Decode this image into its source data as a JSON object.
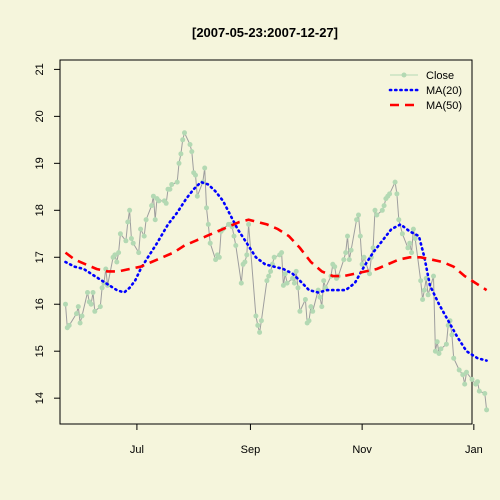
{
  "chart_data": {
    "type": "line",
    "title": "[2007-05-23:2007-12-27]",
    "xlabel": "",
    "ylabel": "",
    "xlim": [
      "2007-05-20",
      "2007-12-31"
    ],
    "ylim": [
      13.45,
      21.2
    ],
    "x_ticks": [
      {
        "date": "2007-07-01",
        "label": "Jul"
      },
      {
        "date": "2007-09-01",
        "label": "Sep"
      },
      {
        "date": "2007-11-01",
        "label": "Nov"
      },
      {
        "date": "2008-01-01",
        "label": "Jan"
      }
    ],
    "y_ticks": [
      14,
      15,
      16,
      17,
      18,
      19,
      20,
      21
    ],
    "grid": false,
    "legend_position": "top-right",
    "series": [
      {
        "name": "Close",
        "color": "#B3D9B3",
        "style": "line-points",
        "points": [
          [
            "2007-05-23",
            16.0
          ],
          [
            "2007-05-24",
            15.5
          ],
          [
            "2007-05-25",
            15.55
          ],
          [
            "2007-05-29",
            15.8
          ],
          [
            "2007-05-30",
            15.95
          ],
          [
            "2007-05-31",
            15.6
          ],
          [
            "2007-06-01",
            15.75
          ],
          [
            "2007-06-04",
            16.25
          ],
          [
            "2007-06-05",
            16.05
          ],
          [
            "2007-06-06",
            16.0
          ],
          [
            "2007-06-07",
            16.25
          ],
          [
            "2007-06-08",
            15.85
          ],
          [
            "2007-06-11",
            15.95
          ],
          [
            "2007-06-12",
            16.35
          ],
          [
            "2007-06-13",
            16.45
          ],
          [
            "2007-06-14",
            16.75
          ],
          [
            "2007-06-15",
            16.4
          ],
          [
            "2007-06-18",
            17.0
          ],
          [
            "2007-06-19",
            17.05
          ],
          [
            "2007-06-20",
            16.9
          ],
          [
            "2007-06-21",
            17.1
          ],
          [
            "2007-06-22",
            17.5
          ],
          [
            "2007-06-25",
            17.35
          ],
          [
            "2007-06-26",
            17.75
          ],
          [
            "2007-06-27",
            18.0
          ],
          [
            "2007-06-28",
            17.4
          ],
          [
            "2007-06-29",
            17.3
          ],
          [
            "2007-07-02",
            17.1
          ],
          [
            "2007-07-03",
            17.6
          ],
          [
            "2007-07-05",
            17.45
          ],
          [
            "2007-07-06",
            17.8
          ],
          [
            "2007-07-09",
            18.1
          ],
          [
            "2007-07-10",
            18.3
          ],
          [
            "2007-07-11",
            17.8
          ],
          [
            "2007-07-12",
            18.25
          ],
          [
            "2007-07-13",
            18.2
          ],
          [
            "2007-07-16",
            18.2
          ],
          [
            "2007-07-17",
            18.15
          ],
          [
            "2007-07-18",
            18.45
          ],
          [
            "2007-07-19",
            18.45
          ],
          [
            "2007-07-20",
            18.55
          ],
          [
            "2007-07-23",
            18.6
          ],
          [
            "2007-07-24",
            19.0
          ],
          [
            "2007-07-25",
            19.2
          ],
          [
            "2007-07-26",
            19.5
          ],
          [
            "2007-07-27",
            19.65
          ],
          [
            "2007-07-30",
            19.4
          ],
          [
            "2007-07-31",
            19.25
          ],
          [
            "2007-08-01",
            18.8
          ],
          [
            "2007-08-02",
            18.75
          ],
          [
            "2007-08-03",
            18.3
          ],
          [
            "2007-08-06",
            18.6
          ],
          [
            "2007-08-07",
            18.9
          ],
          [
            "2007-08-08",
            18.05
          ],
          [
            "2007-08-09",
            17.7
          ],
          [
            "2007-08-10",
            17.3
          ],
          [
            "2007-08-13",
            16.95
          ],
          [
            "2007-08-14",
            17.05
          ],
          [
            "2007-08-15",
            17.0
          ],
          [
            "2007-08-16",
            17.55
          ],
          [
            "2007-08-17",
            17.6
          ],
          [
            "2007-08-20",
            17.7
          ],
          [
            "2007-08-21",
            17.7
          ],
          [
            "2007-08-22",
            17.65
          ],
          [
            "2007-08-23",
            17.45
          ],
          [
            "2007-08-24",
            17.25
          ],
          [
            "2007-08-27",
            16.45
          ],
          [
            "2007-08-28",
            16.85
          ],
          [
            "2007-08-29",
            16.9
          ],
          [
            "2007-08-30",
            17.05
          ],
          [
            "2007-08-31",
            17.7
          ],
          [
            "2007-09-04",
            15.75
          ],
          [
            "2007-09-05",
            15.55
          ],
          [
            "2007-09-06",
            15.4
          ],
          [
            "2007-09-07",
            15.65
          ],
          [
            "2007-09-10",
            16.5
          ],
          [
            "2007-09-11",
            16.6
          ],
          [
            "2007-09-12",
            16.7
          ],
          [
            "2007-09-13",
            16.85
          ],
          [
            "2007-09-14",
            17.0
          ],
          [
            "2007-09-17",
            17.05
          ],
          [
            "2007-09-18",
            17.1
          ],
          [
            "2007-09-19",
            16.4
          ],
          [
            "2007-09-20",
            16.65
          ],
          [
            "2007-09-21",
            16.45
          ],
          [
            "2007-09-24",
            16.55
          ],
          [
            "2007-09-25",
            16.45
          ],
          [
            "2007-09-26",
            16.7
          ],
          [
            "2007-09-27",
            16.35
          ],
          [
            "2007-09-28",
            15.85
          ],
          [
            "2007-10-01",
            16.1
          ],
          [
            "2007-10-02",
            15.6
          ],
          [
            "2007-10-03",
            15.65
          ],
          [
            "2007-10-04",
            15.95
          ],
          [
            "2007-10-05",
            15.85
          ],
          [
            "2007-10-08",
            16.3
          ],
          [
            "2007-10-09",
            16.15
          ],
          [
            "2007-10-10",
            15.95
          ],
          [
            "2007-10-11",
            16.5
          ],
          [
            "2007-10-12",
            16.35
          ],
          [
            "2007-10-15",
            16.6
          ],
          [
            "2007-10-16",
            16.85
          ],
          [
            "2007-10-17",
            16.8
          ],
          [
            "2007-10-18",
            16.55
          ],
          [
            "2007-10-19",
            16.6
          ],
          [
            "2007-10-22",
            16.95
          ],
          [
            "2007-10-23",
            17.1
          ],
          [
            "2007-10-24",
            17.45
          ],
          [
            "2007-10-25",
            16.95
          ],
          [
            "2007-10-26",
            17.15
          ],
          [
            "2007-10-29",
            17.8
          ],
          [
            "2007-10-30",
            17.9
          ],
          [
            "2007-10-31",
            17.45
          ],
          [
            "2007-11-01",
            16.85
          ],
          [
            "2007-11-02",
            17.0
          ],
          [
            "2007-11-05",
            16.65
          ],
          [
            "2007-11-06",
            17.0
          ],
          [
            "2007-11-07",
            17.2
          ],
          [
            "2007-11-08",
            18.0
          ],
          [
            "2007-11-09",
            17.9
          ],
          [
            "2007-11-12",
            18.0
          ],
          [
            "2007-11-13",
            18.1
          ],
          [
            "2007-11-14",
            18.25
          ],
          [
            "2007-11-15",
            18.3
          ],
          [
            "2007-11-16",
            18.35
          ],
          [
            "2007-11-19",
            18.6
          ],
          [
            "2007-11-20",
            18.35
          ],
          [
            "2007-11-21",
            17.8
          ],
          [
            "2007-11-23",
            17.5
          ],
          [
            "2007-11-26",
            17.2
          ],
          [
            "2007-11-27",
            17.3
          ],
          [
            "2007-11-28",
            17.1
          ],
          [
            "2007-11-29",
            17.6
          ],
          [
            "2007-11-30",
            17.4
          ],
          [
            "2007-12-03",
            16.5
          ],
          [
            "2007-12-04",
            16.1
          ],
          [
            "2007-12-05",
            16.3
          ],
          [
            "2007-12-06",
            16.55
          ],
          [
            "2007-12-07",
            16.2
          ],
          [
            "2007-12-10",
            16.6
          ],
          [
            "2007-12-11",
            15.0
          ],
          [
            "2007-12-12",
            15.2
          ],
          [
            "2007-12-13",
            14.95
          ],
          [
            "2007-12-14",
            15.05
          ],
          [
            "2007-12-17",
            15.15
          ],
          [
            "2007-12-18",
            15.55
          ],
          [
            "2007-12-19",
            15.65
          ],
          [
            "2007-12-20",
            15.35
          ],
          [
            "2007-12-21",
            14.85
          ],
          [
            "2007-12-24",
            14.6
          ],
          [
            "2007-12-26",
            14.5
          ],
          [
            "2007-12-27",
            14.3
          ],
          [
            "2007-12-28",
            14.55
          ],
          [
            "2007-12-31",
            14.4
          ],
          [
            "2008-01-02",
            14.3
          ],
          [
            "2008-01-03",
            14.35
          ],
          [
            "2008-01-04",
            14.15
          ],
          [
            "2008-01-07",
            14.1
          ],
          [
            "2008-01-08",
            13.75
          ]
        ]
      },
      {
        "name": "MA(20)",
        "color": "#0000FF",
        "style": "dotted",
        "points": [
          [
            "2007-05-23",
            16.9
          ],
          [
            "2007-05-28",
            16.8
          ],
          [
            "2007-06-02",
            16.75
          ],
          [
            "2007-06-08",
            16.6
          ],
          [
            "2007-06-14",
            16.45
          ],
          [
            "2007-06-20",
            16.3
          ],
          [
            "2007-06-24",
            16.25
          ],
          [
            "2007-06-27",
            16.35
          ],
          [
            "2007-06-30",
            16.5
          ],
          [
            "2007-07-03",
            16.75
          ],
          [
            "2007-07-07",
            17.0
          ],
          [
            "2007-07-12",
            17.3
          ],
          [
            "2007-07-18",
            17.7
          ],
          [
            "2007-07-23",
            17.95
          ],
          [
            "2007-07-28",
            18.25
          ],
          [
            "2007-08-01",
            18.45
          ],
          [
            "2007-08-05",
            18.6
          ],
          [
            "2007-08-09",
            18.55
          ],
          [
            "2007-08-13",
            18.4
          ],
          [
            "2007-08-17",
            18.2
          ],
          [
            "2007-08-21",
            17.9
          ],
          [
            "2007-08-25",
            17.6
          ],
          [
            "2007-08-30",
            17.3
          ],
          [
            "2007-09-04",
            17.0
          ],
          [
            "2007-09-09",
            16.85
          ],
          [
            "2007-09-14",
            16.8
          ],
          [
            "2007-09-19",
            16.75
          ],
          [
            "2007-09-24",
            16.65
          ],
          [
            "2007-09-28",
            16.5
          ],
          [
            "2007-10-03",
            16.3
          ],
          [
            "2007-10-08",
            16.25
          ],
          [
            "2007-10-13",
            16.3
          ],
          [
            "2007-10-18",
            16.3
          ],
          [
            "2007-10-23",
            16.3
          ],
          [
            "2007-10-28",
            16.45
          ],
          [
            "2007-11-02",
            16.8
          ],
          [
            "2007-11-07",
            17.1
          ],
          [
            "2007-11-12",
            17.35
          ],
          [
            "2007-11-17",
            17.6
          ],
          [
            "2007-11-22",
            17.7
          ],
          [
            "2007-11-27",
            17.55
          ],
          [
            "2007-12-02",
            17.45
          ],
          [
            "2007-12-05",
            17.0
          ],
          [
            "2007-12-08",
            16.4
          ],
          [
            "2007-12-13",
            16.0
          ],
          [
            "2007-12-18",
            15.65
          ],
          [
            "2007-12-23",
            15.3
          ],
          [
            "2007-12-28",
            15.0
          ],
          [
            "2008-01-03",
            14.85
          ],
          [
            "2008-01-08",
            14.8
          ]
        ]
      },
      {
        "name": "MA(50)",
        "color": "#FF0000",
        "style": "dashed",
        "points": [
          [
            "2007-05-23",
            17.1
          ],
          [
            "2007-05-28",
            16.95
          ],
          [
            "2007-06-03",
            16.85
          ],
          [
            "2007-06-09",
            16.75
          ],
          [
            "2007-06-15",
            16.7
          ],
          [
            "2007-06-21",
            16.7
          ],
          [
            "2007-06-27",
            16.75
          ],
          [
            "2007-07-03",
            16.8
          ],
          [
            "2007-07-09",
            16.9
          ],
          [
            "2007-07-15",
            17.0
          ],
          [
            "2007-07-21",
            17.1
          ],
          [
            "2007-07-27",
            17.25
          ],
          [
            "2007-08-02",
            17.35
          ],
          [
            "2007-08-08",
            17.45
          ],
          [
            "2007-08-14",
            17.55
          ],
          [
            "2007-08-20",
            17.65
          ],
          [
            "2007-08-26",
            17.75
          ],
          [
            "2007-08-31",
            17.8
          ],
          [
            "2007-09-05",
            17.75
          ],
          [
            "2007-09-10",
            17.7
          ],
          [
            "2007-09-16",
            17.6
          ],
          [
            "2007-09-22",
            17.45
          ],
          [
            "2007-09-28",
            17.2
          ],
          [
            "2007-10-04",
            16.9
          ],
          [
            "2007-10-10",
            16.7
          ],
          [
            "2007-10-16",
            16.6
          ],
          [
            "2007-10-22",
            16.6
          ],
          [
            "2007-10-28",
            16.65
          ],
          [
            "2007-11-03",
            16.7
          ],
          [
            "2007-11-09",
            16.75
          ],
          [
            "2007-11-15",
            16.85
          ],
          [
            "2007-11-21",
            16.95
          ],
          [
            "2007-11-27",
            17.0
          ],
          [
            "2007-12-03",
            17.0
          ],
          [
            "2007-12-09",
            16.95
          ],
          [
            "2007-12-15",
            16.9
          ],
          [
            "2007-12-21",
            16.8
          ],
          [
            "2007-12-27",
            16.6
          ],
          [
            "2008-01-02",
            16.45
          ],
          [
            "2008-01-08",
            16.3
          ]
        ]
      }
    ]
  }
}
